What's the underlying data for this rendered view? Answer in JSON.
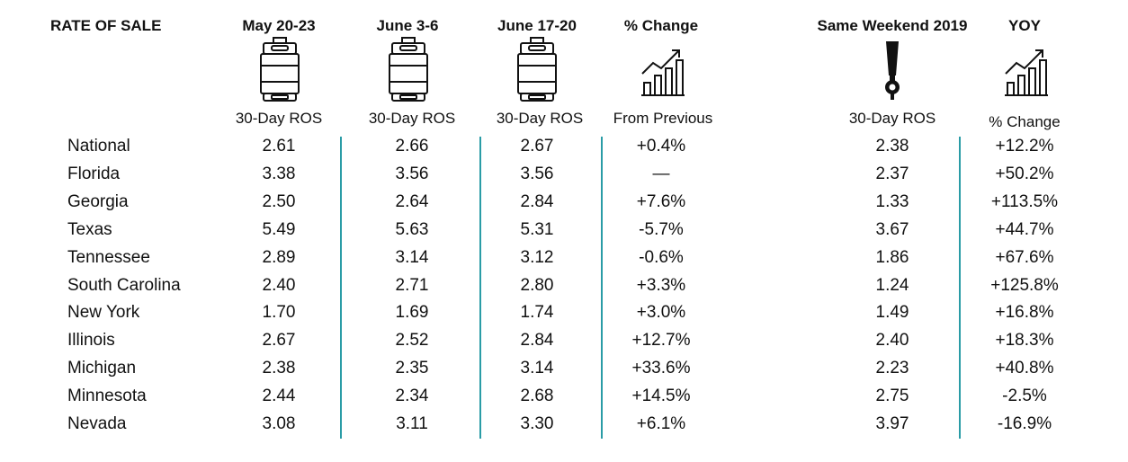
{
  "header": {
    "title": "RATE OF SALE",
    "columns": [
      "May 20-23",
      "June 3-6",
      "June 17-20",
      "% Change",
      "Same Weekend 2019",
      "YOY"
    ],
    "subheaders": [
      "30-Day ROS",
      "30-Day ROS",
      "30-Day ROS",
      "From Previous",
      "30-Day ROS",
      "% Change"
    ]
  },
  "colors": {
    "divider": "#2a9ca6",
    "text": "#111111"
  },
  "icons": [
    "keg-icon",
    "keg-icon",
    "keg-icon",
    "growth-chart-icon",
    "beer-tap-icon",
    "growth-chart-icon"
  ],
  "chart_data": {
    "type": "table",
    "title": "RATE OF SALE",
    "columns": [
      "May 20-23",
      "June 3-6",
      "June 17-20",
      "% Change",
      "Same Weekend 2019",
      "YOY"
    ],
    "rows": [
      {
        "label": "National",
        "values": [
          "2.61",
          "2.66",
          "2.67",
          "+0.4%",
          "2.38",
          "+12.2%"
        ]
      },
      {
        "label": "Florida",
        "values": [
          "3.38",
          "3.56",
          "3.56",
          "—",
          "2.37",
          "+50.2%"
        ]
      },
      {
        "label": "Georgia",
        "values": [
          "2.50",
          "2.64",
          "2.84",
          "+7.6%",
          "1.33",
          "+113.5%"
        ]
      },
      {
        "label": "Texas",
        "values": [
          "5.49",
          "5.63",
          "5.31",
          "-5.7%",
          "3.67",
          "+44.7%"
        ]
      },
      {
        "label": "Tennessee",
        "values": [
          "2.89",
          "3.14",
          "3.12",
          "-0.6%",
          "1.86",
          "+67.6%"
        ]
      },
      {
        "label": "South Carolina",
        "values": [
          "2.40",
          "2.71",
          "2.80",
          "+3.3%",
          "1.24",
          "+125.8%"
        ]
      },
      {
        "label": "New York",
        "values": [
          "1.70",
          "1.69",
          "1.74",
          "+3.0%",
          "1.49",
          "+16.8%"
        ]
      },
      {
        "label": "Illinois",
        "values": [
          "2.67",
          "2.52",
          "2.84",
          "+12.7%",
          "2.40",
          "+18.3%"
        ]
      },
      {
        "label": "Michigan",
        "values": [
          "2.38",
          "2.35",
          "3.14",
          "+33.6%",
          "2.23",
          "+40.8%"
        ]
      },
      {
        "label": "Minnesota",
        "values": [
          "2.44",
          "2.34",
          "2.68",
          "+14.5%",
          "2.75",
          "-2.5%"
        ]
      },
      {
        "label": "Nevada",
        "values": [
          "3.08",
          "3.11",
          "3.30",
          "+6.1%",
          "3.97",
          "-16.9%"
        ]
      }
    ]
  }
}
